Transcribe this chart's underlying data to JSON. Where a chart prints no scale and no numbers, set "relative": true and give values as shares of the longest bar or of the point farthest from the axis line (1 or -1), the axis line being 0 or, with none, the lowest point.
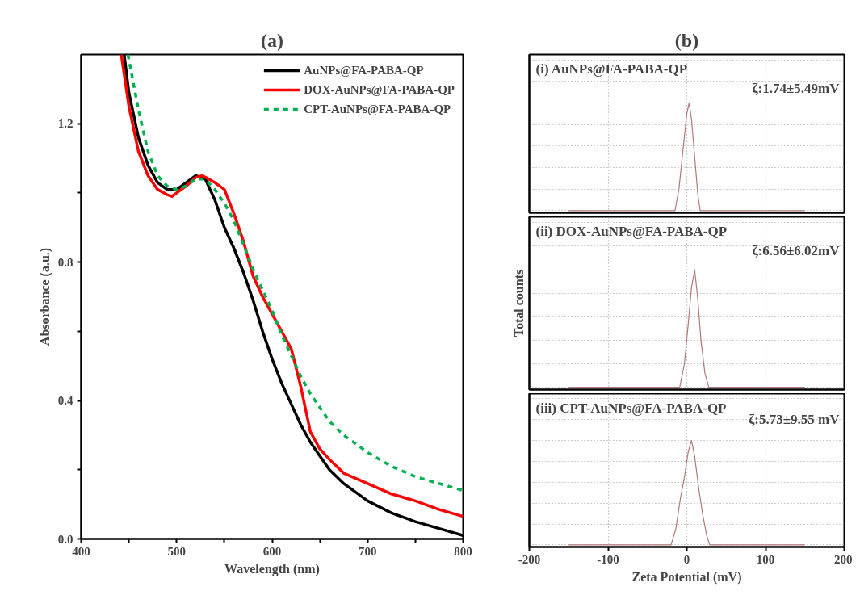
{
  "chart_data": [
    {
      "type": "line",
      "title": "(a)",
      "xlabel": "Wavelength (nm)",
      "ylabel": "Absorbance (a.u.)",
      "xlim": [
        400,
        800
      ],
      "ylim": [
        0,
        1.4
      ],
      "xticks": [
        400,
        {
          "value": 450,
          "label": null
        },
        500,
        {
          "value": 550,
          "label": null
        },
        600,
        {
          "value": 650,
          "label": null
        },
        700,
        {
          "value": 750,
          "label": null
        },
        800
      ],
      "yticks": [
        {
          "value": 0,
          "label": "0.0"
        },
        {
          "value": 0.2,
          "label": null
        },
        0.4,
        {
          "value": 0.6,
          "label": null
        },
        0.8,
        {
          "value": 1.0,
          "label": null
        },
        1.2
      ],
      "legend": "top right",
      "grid": false,
      "series": [
        {
          "name": "AuNPs@FA-PABA-QP",
          "color": "#000000",
          "line_style": "solid",
          "x": [
            445,
            450,
            460,
            470,
            480,
            490,
            500,
            510,
            520,
            530,
            540,
            550,
            560,
            570,
            580,
            590,
            600,
            610,
            620,
            630,
            640,
            650,
            660,
            675,
            700,
            725,
            750,
            775,
            800
          ],
          "values": [
            1.4,
            1.29,
            1.16,
            1.08,
            1.03,
            1.01,
            1.01,
            1.03,
            1.05,
            1.04,
            0.98,
            0.9,
            0.84,
            0.77,
            0.69,
            0.6,
            0.52,
            0.45,
            0.39,
            0.33,
            0.28,
            0.24,
            0.2,
            0.16,
            0.11,
            0.075,
            0.05,
            0.03,
            0.01
          ]
        },
        {
          "name": "DOX-AuNPs@FA-PABA-QP",
          "color": "#ff0000",
          "line_style": "solid",
          "x": [
            442,
            450,
            460,
            470,
            480,
            490,
            495,
            500,
            510,
            520,
            527,
            540,
            550,
            560,
            570,
            580,
            590,
            600,
            610,
            620,
            630,
            640,
            650,
            660,
            675,
            700,
            725,
            750,
            775,
            800
          ],
          "values": [
            1.4,
            1.25,
            1.12,
            1.05,
            1.01,
            0.995,
            0.99,
            1.0,
            1.02,
            1.045,
            1.05,
            1.03,
            1.01,
            0.94,
            0.86,
            0.76,
            0.7,
            0.65,
            0.6,
            0.55,
            0.44,
            0.31,
            0.26,
            0.23,
            0.19,
            0.16,
            0.13,
            0.11,
            0.085,
            0.065
          ]
        },
        {
          "name": "CPT-AuNPs@FA-PABA-QP",
          "color": "#00b050",
          "line_style": "dashed",
          "x": [
            449,
            460,
            470,
            480,
            490,
            500,
            510,
            520,
            530,
            540,
            550,
            560,
            570,
            580,
            590,
            600,
            610,
            620,
            630,
            640,
            650,
            660,
            675,
            700,
            725,
            750,
            775,
            800
          ],
          "values": [
            1.4,
            1.24,
            1.12,
            1.05,
            1.02,
            1.01,
            1.02,
            1.04,
            1.04,
            1.01,
            0.97,
            0.92,
            0.85,
            0.78,
            0.72,
            0.66,
            0.59,
            0.53,
            0.47,
            0.42,
            0.38,
            0.34,
            0.3,
            0.25,
            0.21,
            0.18,
            0.16,
            0.14
          ]
        }
      ]
    },
    {
      "type": "line",
      "title": "(b)",
      "subtitle": "(i) AuNPs@FA-PABA-QP",
      "relative": true,
      "xlim": [
        -200,
        200
      ],
      "xticks": [
        -200,
        -100,
        0,
        100,
        200
      ],
      "tick_labels": false,
      "grid": true,
      "annotations": [
        "ζ:1.74±5.49mV"
      ],
      "series": [
        {
          "color": "#b07878",
          "x": [
            -150,
            -15,
            -10,
            -5,
            0,
            3,
            6,
            10,
            14,
            17,
            150
          ],
          "values": [
            0,
            0,
            0.2,
            0.55,
            0.9,
            1.0,
            0.85,
            0.5,
            0.15,
            0,
            0
          ]
        }
      ]
    },
    {
      "type": "line",
      "subtitle": "(ii) DOX-AuNPs@FA-PABA-QP",
      "ylabel": "Total counts",
      "relative": true,
      "xlim": [
        -200,
        200
      ],
      "xticks": [
        -200,
        -100,
        0,
        100,
        200
      ],
      "tick_labels": false,
      "grid": true,
      "annotations": [
        "ζ:6.56±6.02mV"
      ],
      "series": [
        {
          "color": "#b07878",
          "x": [
            -150,
            -9,
            -3,
            2,
            6,
            10,
            14,
            18,
            23,
            28,
            150
          ],
          "values": [
            0,
            0,
            0.2,
            0.55,
            0.85,
            1.0,
            0.75,
            0.4,
            0.12,
            0,
            0
          ]
        }
      ]
    },
    {
      "type": "line",
      "subtitle": "(iii) CPT-AuNPs@FA-PABA-QP",
      "xlabel": "Zeta Potential (mV)",
      "relative": true,
      "xlim": [
        -200,
        200
      ],
      "xticks": [
        -200,
        -100,
        0,
        100,
        200
      ],
      "tick_labels": "x",
      "grid": true,
      "annotations": [
        "ζ:5.73±9.55 mV"
      ],
      "series": [
        {
          "color": "#b07878",
          "x": [
            -150,
            -20,
            -14,
            -8,
            -3,
            2,
            6,
            10,
            15,
            20,
            25,
            29,
            150
          ],
          "values": [
            0,
            0,
            0.15,
            0.45,
            0.65,
            0.9,
            1.0,
            0.85,
            0.55,
            0.3,
            0.1,
            0,
            0
          ]
        }
      ]
    }
  ]
}
